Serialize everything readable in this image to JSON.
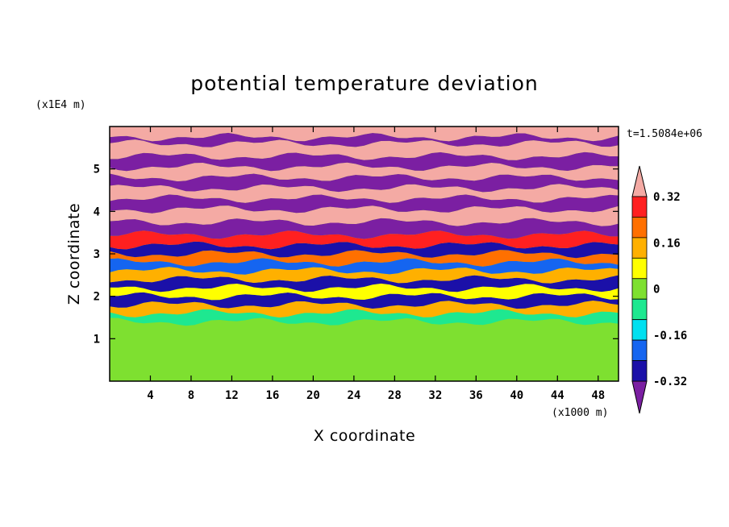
{
  "chart_data": {
    "type": "heatmap",
    "title": "potential temperature deviation",
    "xlabel": "X coordinate",
    "ylabel": "Z coordinate",
    "x_unit": "(x1000 m)",
    "y_unit": "(x1E4 m)",
    "time_label": "t=1.5084e+06",
    "xlim": [
      0,
      50
    ],
    "ylim": [
      0,
      6
    ],
    "x_ticks": [
      4,
      8,
      12,
      16,
      20,
      24,
      28,
      32,
      36,
      40,
      44,
      48
    ],
    "y_ticks": [
      1,
      2,
      3,
      4,
      5
    ],
    "colorbar": {
      "levels": [
        -0.4,
        -0.32,
        -0.24,
        -0.16,
        -0.08,
        0,
        0.08,
        0.16,
        0.24,
        0.32,
        0.4
      ],
      "labels": [
        "-0.32",
        "-0.16",
        "0",
        "0.16",
        "0.32"
      ],
      "label_values": [
        -0.32,
        -0.16,
        0,
        0.16,
        0.32
      ],
      "colors": [
        "#7b1fa2",
        "#1b10a8",
        "#1565f0",
        "#00e0f0",
        "#1ee890",
        "#7ee030",
        "#ffff00",
        "#ffb000",
        "#ff7000",
        "#ff2020",
        "#f4aaa4"
      ],
      "extend": "both"
    },
    "bands": [
      {
        "z0": 0.0,
        "z1": 1.4,
        "value": 0.02
      },
      {
        "z0": 1.4,
        "z1": 1.6,
        "value": -0.05
      },
      {
        "z0": 1.6,
        "z1": 1.8,
        "value": 0.16
      },
      {
        "z0": 1.8,
        "z1": 2.0,
        "value": -0.3
      },
      {
        "z0": 2.0,
        "z1": 2.2,
        "value": 0.12
      },
      {
        "z0": 2.2,
        "z1": 2.4,
        "value": -0.25
      },
      {
        "z0": 2.4,
        "z1": 2.6,
        "value": 0.2
      },
      {
        "z0": 2.6,
        "z1": 2.8,
        "value": -0.2
      },
      {
        "z0": 2.8,
        "z1": 3.0,
        "value": 0.28
      },
      {
        "z0": 3.0,
        "z1": 3.2,
        "value": -0.3
      },
      {
        "z0": 3.2,
        "z1": 3.45,
        "value": 0.36
      },
      {
        "z0": 3.45,
        "z1": 3.75,
        "value": -0.42
      },
      {
        "z0": 3.75,
        "z1": 4.05,
        "value": 0.42
      },
      {
        "z0": 4.05,
        "z1": 4.3,
        "value": -0.42
      },
      {
        "z0": 4.3,
        "z1": 4.55,
        "value": 0.42
      },
      {
        "z0": 4.55,
        "z1": 4.8,
        "value": -0.42
      },
      {
        "z0": 4.8,
        "z1": 5.05,
        "value": 0.42
      },
      {
        "z0": 5.05,
        "z1": 5.3,
        "value": -0.42
      },
      {
        "z0": 5.3,
        "z1": 5.6,
        "value": 0.42
      },
      {
        "z0": 5.6,
        "z1": 5.75,
        "value": -0.42
      },
      {
        "z0": 5.75,
        "z1": 6.0,
        "value": 0.42
      }
    ]
  }
}
